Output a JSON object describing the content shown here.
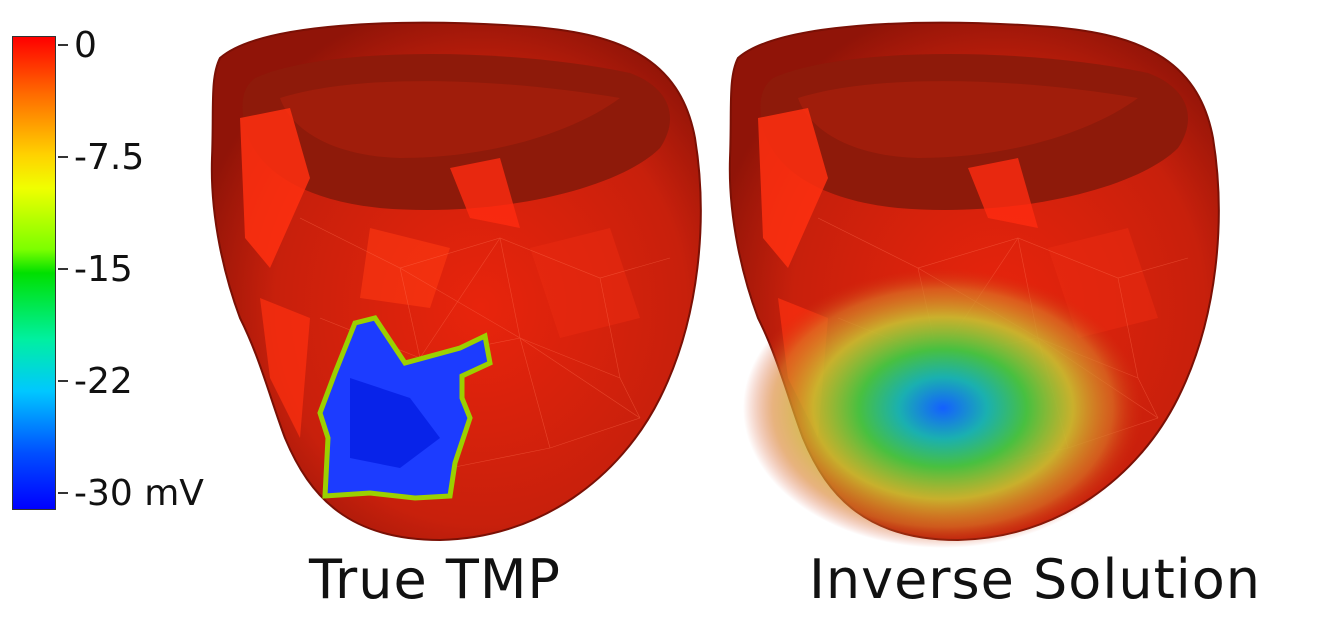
{
  "colorbar": {
    "unit": "mV",
    "ticks": [
      {
        "value": 0,
        "label": "0"
      },
      {
        "value": -7.5,
        "label": "-7.5"
      },
      {
        "value": -15,
        "label": "-15"
      },
      {
        "value": -22,
        "label": "-22"
      },
      {
        "value": -30,
        "label": "-30 mV"
      }
    ],
    "range": [
      -30,
      0
    ],
    "colors": [
      "#0000ff",
      "#00bfff",
      "#00e000",
      "#ffff00",
      "#ff8000",
      "#ff0000"
    ]
  },
  "panels": [
    {
      "caption": "True TMP"
    },
    {
      "caption": "Inverse Solution"
    }
  ]
}
